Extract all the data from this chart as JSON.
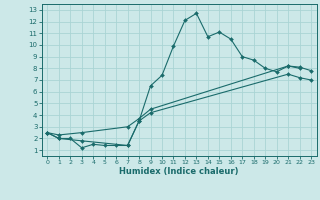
{
  "bg_color": "#cce8e8",
  "line_color": "#1a6b6b",
  "grid_color": "#aad4d4",
  "xlabel": "Humidex (Indice chaleur)",
  "ylim": [
    0.5,
    13.5
  ],
  "xlim": [
    -0.5,
    23.5
  ],
  "yticks": [
    1,
    2,
    3,
    4,
    5,
    6,
    7,
    8,
    9,
    10,
    11,
    12,
    13
  ],
  "xticks": [
    0,
    1,
    2,
    3,
    4,
    5,
    6,
    7,
    8,
    9,
    10,
    11,
    12,
    13,
    14,
    15,
    16,
    17,
    18,
    19,
    20,
    21,
    22,
    23
  ],
  "line1_x": [
    0,
    1,
    2,
    3,
    4,
    5,
    6,
    7,
    8,
    9,
    10,
    11,
    12,
    13,
    14,
    15,
    16,
    17,
    18,
    19,
    20,
    21,
    22
  ],
  "line1_y": [
    2.5,
    2.0,
    2.0,
    1.2,
    1.5,
    1.4,
    1.4,
    1.4,
    3.5,
    6.5,
    7.4,
    9.9,
    12.1,
    12.7,
    10.7,
    11.1,
    10.5,
    9.0,
    8.7,
    8.0,
    7.7,
    8.2,
    8.0
  ],
  "line2_x": [
    0,
    1,
    3,
    7,
    8,
    9,
    21,
    22,
    23
  ],
  "line2_y": [
    2.5,
    2.3,
    2.5,
    3.0,
    3.7,
    4.5,
    8.2,
    8.1,
    7.8
  ],
  "line3_x": [
    0,
    1,
    3,
    7,
    8,
    9,
    21,
    22,
    23
  ],
  "line3_y": [
    2.5,
    2.0,
    1.8,
    1.4,
    3.5,
    4.2,
    7.5,
    7.2,
    7.0
  ]
}
